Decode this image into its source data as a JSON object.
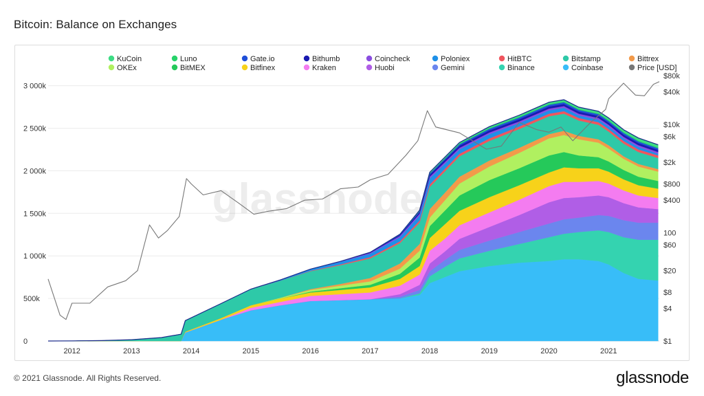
{
  "page": {
    "title": "Bitcoin: Balance on Exchanges",
    "footer": "© 2021 Glassnode. All Rights Reserved.",
    "brand": "glassnode",
    "watermark": "glassnode"
  },
  "chart_data": {
    "type": "area",
    "stacked": true,
    "title": "Bitcoin: Balance on Exchanges",
    "x_ticks": [
      "2012",
      "2013",
      "2014",
      "2015",
      "2016",
      "2017",
      "2018",
      "2019",
      "2020",
      "2021"
    ],
    "x_range": [
      2011.6,
      2021.85
    ],
    "y_left_ticks": [
      {
        "v": 0,
        "label": "0"
      },
      {
        "v": 500000,
        "label": "500k"
      },
      {
        "v": 1000000,
        "label": "1 000k"
      },
      {
        "v": 1500000,
        "label": "1 500k"
      },
      {
        "v": 2000000,
        "label": "2 000k"
      },
      {
        "v": 2500000,
        "label": "2 500k"
      },
      {
        "v": 3000000,
        "label": "3 000k"
      }
    ],
    "y_left_range": [
      0,
      3150000
    ],
    "y_right_ticks": [
      {
        "v": 1,
        "label": "$1"
      },
      {
        "v": 4,
        "label": "$4"
      },
      {
        "v": 8,
        "label": "$8"
      },
      {
        "v": 20,
        "label": "$20"
      },
      {
        "v": 60,
        "label": "$60"
      },
      {
        "v": 100,
        "label": "100"
      },
      {
        "v": 400,
        "label": "$400"
      },
      {
        "v": 800,
        "label": "$800"
      },
      {
        "v": 2000,
        "label": "$2k"
      },
      {
        "v": 6000,
        "label": "$6k"
      },
      {
        "v": 10000,
        "label": "$10k"
      },
      {
        "v": 40000,
        "label": "$40k"
      },
      {
        "v": 80000,
        "label": "$80k"
      }
    ],
    "y_right_range_log": [
      1,
      90000
    ],
    "legend_position": "top",
    "legend_entries": [
      {
        "name": "KuCoin",
        "color": "#3ddc84"
      },
      {
        "name": "Luno",
        "color": "#27d36a"
      },
      {
        "name": "Gate.io",
        "color": "#1f4fd8"
      },
      {
        "name": "Bithumb",
        "color": "#1a1ab0"
      },
      {
        "name": "Coincheck",
        "color": "#8a4de0"
      },
      {
        "name": "Poloniex",
        "color": "#1e90e8"
      },
      {
        "name": "HitBTC",
        "color": "#f0555e"
      },
      {
        "name": "Bitstamp",
        "color": "#2ec9a8"
      },
      {
        "name": "Bittrex",
        "color": "#f29a4a"
      },
      {
        "name": "OKEx",
        "color": "#b0f060"
      },
      {
        "name": "BitMEX",
        "color": "#25c95a"
      },
      {
        "name": "Bitfinex",
        "color": "#f7d21a"
      },
      {
        "name": "Kraken",
        "color": "#f47cf0"
      },
      {
        "name": "Huobi",
        "color": "#b05ee6"
      },
      {
        "name": "Gemini",
        "color": "#6b86ee"
      },
      {
        "name": "Binance",
        "color": "#34d3b0"
      },
      {
        "name": "Coinbase",
        "color": "#38bdf8"
      },
      {
        "name": "Price [USD]",
        "color": "#777777"
      }
    ],
    "x": [
      2011.6,
      2012.0,
      2012.5,
      2013.0,
      2013.5,
      2013.83,
      2013.9,
      2014.5,
      2015.0,
      2015.5,
      2016.0,
      2016.5,
      2017.0,
      2017.5,
      2017.83,
      2018.0,
      2018.25,
      2018.5,
      2019.0,
      2019.5,
      2020.0,
      2020.25,
      2020.5,
      2020.83,
      2021.0,
      2021.25,
      2021.5,
      2021.83
    ],
    "series": [
      {
        "name": "Coinbase",
        "color": "#38bdf8",
        "values": [
          0,
          0,
          0,
          0,
          0,
          0,
          100000,
          250000,
          360000,
          420000,
          470000,
          480000,
          490000,
          500000,
          540000,
          680000,
          750000,
          820000,
          880000,
          920000,
          940000,
          960000,
          960000,
          940000,
          900000,
          800000,
          730000,
          710000
        ]
      },
      {
        "name": "Binance",
        "color": "#34d3b0",
        "values": [
          0,
          0,
          0,
          0,
          0,
          0,
          0,
          0,
          0,
          0,
          0,
          0,
          0,
          0,
          20000,
          80000,
          120000,
          150000,
          180000,
          220000,
          280000,
          300000,
          320000,
          360000,
          380000,
          420000,
          460000,
          480000
        ]
      },
      {
        "name": "Gemini",
        "color": "#6b86ee",
        "values": [
          0,
          0,
          0,
          0,
          0,
          0,
          0,
          0,
          0,
          0,
          0,
          0,
          0,
          20000,
          40000,
          60000,
          80000,
          100000,
          120000,
          140000,
          160000,
          170000,
          170000,
          180000,
          190000,
          200000,
          200000,
          200000
        ]
      },
      {
        "name": "Huobi",
        "color": "#b05ee6",
        "values": [
          0,
          0,
          0,
          0,
          0,
          0,
          0,
          0,
          0,
          0,
          0,
          0,
          0,
          30000,
          60000,
          90000,
          100000,
          130000,
          160000,
          200000,
          250000,
          250000,
          240000,
          230000,
          220000,
          200000,
          180000,
          160000
        ]
      },
      {
        "name": "Kraken",
        "color": "#f47cf0",
        "values": [
          0,
          0,
          0,
          0,
          0,
          0,
          0,
          0,
          30000,
          40000,
          60000,
          70000,
          80000,
          100000,
          120000,
          150000,
          150000,
          160000,
          170000,
          180000,
          190000,
          190000,
          180000,
          170000,
          160000,
          150000,
          140000,
          130000
        ]
      },
      {
        "name": "Bitfinex",
        "color": "#f7d21a",
        "values": [
          0,
          0,
          0,
          0,
          0,
          0,
          10000,
          20000,
          30000,
          40000,
          40000,
          50000,
          60000,
          80000,
          100000,
          150000,
          170000,
          170000,
          180000,
          170000,
          160000,
          170000,
          160000,
          150000,
          140000,
          130000,
          120000,
          110000
        ]
      },
      {
        "name": "BitMEX",
        "color": "#25c95a",
        "values": [
          0,
          0,
          0,
          0,
          0,
          0,
          0,
          0,
          0,
          0,
          10000,
          20000,
          30000,
          60000,
          100000,
          140000,
          160000,
          180000,
          200000,
          200000,
          200000,
          180000,
          150000,
          130000,
          120000,
          110000,
          100000,
          90000
        ]
      },
      {
        "name": "OKEx",
        "color": "#b0f060",
        "values": [
          0,
          0,
          0,
          0,
          0,
          0,
          0,
          0,
          0,
          10000,
          20000,
          30000,
          40000,
          60000,
          80000,
          100000,
          120000,
          140000,
          160000,
          180000,
          200000,
          200000,
          190000,
          170000,
          150000,
          130000,
          120000,
          110000
        ]
      },
      {
        "name": "Bittrex",
        "color": "#f29a4a",
        "values": [
          0,
          0,
          0,
          0,
          0,
          0,
          0,
          0,
          0,
          0,
          10000,
          20000,
          40000,
          60000,
          80000,
          100000,
          90000,
          80000,
          70000,
          60000,
          50000,
          50000,
          40000,
          40000,
          40000,
          30000,
          30000,
          30000
        ]
      },
      {
        "name": "Bitstamp",
        "color": "#2ec9a8",
        "values": [
          0,
          2000,
          5000,
          15000,
          40000,
          80000,
          130000,
          170000,
          190000,
          200000,
          210000,
          220000,
          230000,
          240000,
          250000,
          260000,
          250000,
          240000,
          230000,
          220000,
          210000,
          200000,
          180000,
          170000,
          160000,
          150000,
          140000,
          130000
        ]
      },
      {
        "name": "HitBTC",
        "color": "#f0555e",
        "values": [
          0,
          0,
          0,
          0,
          0,
          0,
          0,
          0,
          0,
          0,
          5000,
          10000,
          15000,
          20000,
          25000,
          30000,
          30000,
          30000,
          30000,
          30000,
          30000,
          30000,
          30000,
          30000,
          30000,
          30000,
          30000,
          30000
        ]
      },
      {
        "name": "Poloniex",
        "color": "#1e90e8",
        "values": [
          0,
          0,
          0,
          0,
          0,
          0,
          0,
          0,
          0,
          10000,
          20000,
          30000,
          40000,
          50000,
          60000,
          70000,
          60000,
          50000,
          50000,
          40000,
          40000,
          40000,
          30000,
          30000,
          30000,
          30000,
          30000,
          20000
        ]
      },
      {
        "name": "Coincheck",
        "color": "#8a4de0",
        "values": [
          0,
          0,
          0,
          0,
          0,
          0,
          0,
          0,
          0,
          0,
          0,
          5000,
          10000,
          15000,
          20000,
          20000,
          20000,
          20000,
          20000,
          20000,
          20000,
          20000,
          20000,
          20000,
          20000,
          20000,
          20000,
          20000
        ]
      },
      {
        "name": "Bithumb",
        "color": "#1a1ab0",
        "values": [
          0,
          0,
          0,
          0,
          0,
          0,
          0,
          0,
          0,
          0,
          0,
          0,
          5000,
          10000,
          20000,
          25000,
          25000,
          25000,
          25000,
          25000,
          25000,
          25000,
          25000,
          25000,
          25000,
          25000,
          25000,
          25000
        ]
      },
      {
        "name": "Gate.io",
        "color": "#1f4fd8",
        "values": [
          0,
          0,
          0,
          0,
          0,
          0,
          0,
          0,
          0,
          0,
          0,
          0,
          0,
          5000,
          10000,
          12000,
          14000,
          16000,
          18000,
          20000,
          20000,
          20000,
          20000,
          20000,
          20000,
          20000,
          20000,
          20000
        ]
      },
      {
        "name": "Luno",
        "color": "#27d36a",
        "values": [
          0,
          0,
          0,
          0,
          0,
          0,
          0,
          0,
          0,
          0,
          0,
          0,
          2000,
          4000,
          6000,
          8000,
          9000,
          10000,
          10000,
          10000,
          10000,
          10000,
          10000,
          10000,
          10000,
          10000,
          10000,
          10000
        ]
      },
      {
        "name": "KuCoin",
        "color": "#3ddc84",
        "values": [
          0,
          0,
          0,
          0,
          0,
          0,
          0,
          0,
          0,
          0,
          0,
          0,
          0,
          0,
          5000,
          8000,
          10000,
          12000,
          15000,
          18000,
          20000,
          20000,
          22000,
          24000,
          26000,
          28000,
          30000,
          30000
        ]
      }
    ],
    "price": {
      "name": "Price [USD]",
      "color": "#777777",
      "x": [
        2011.6,
        2011.8,
        2011.9,
        2012.0,
        2012.3,
        2012.6,
        2012.9,
        2013.1,
        2013.3,
        2013.45,
        2013.6,
        2013.8,
        2013.92,
        2014.0,
        2014.2,
        2014.5,
        2014.8,
        2015.05,
        2015.3,
        2015.6,
        2015.9,
        2016.2,
        2016.5,
        2016.8,
        2017.0,
        2017.3,
        2017.6,
        2017.8,
        2017.96,
        2018.1,
        2018.5,
        2018.95,
        2019.2,
        2019.5,
        2019.8,
        2020.0,
        2020.2,
        2020.4,
        2020.7,
        2020.95,
        2021.0,
        2021.25,
        2021.45,
        2021.6,
        2021.75,
        2021.85
      ],
      "values": [
        14,
        3,
        2.5,
        5,
        5,
        10,
        13,
        20,
        140,
        80,
        110,
        200,
        1000,
        800,
        500,
        600,
        350,
        220,
        250,
        280,
        400,
        420,
        650,
        700,
        950,
        1200,
        2700,
        5000,
        18000,
        9000,
        7000,
        3500,
        4000,
        11000,
        8000,
        7200,
        9000,
        5000,
        11000,
        19000,
        30000,
        58000,
        35000,
        34000,
        55000,
        62000
      ]
    }
  }
}
